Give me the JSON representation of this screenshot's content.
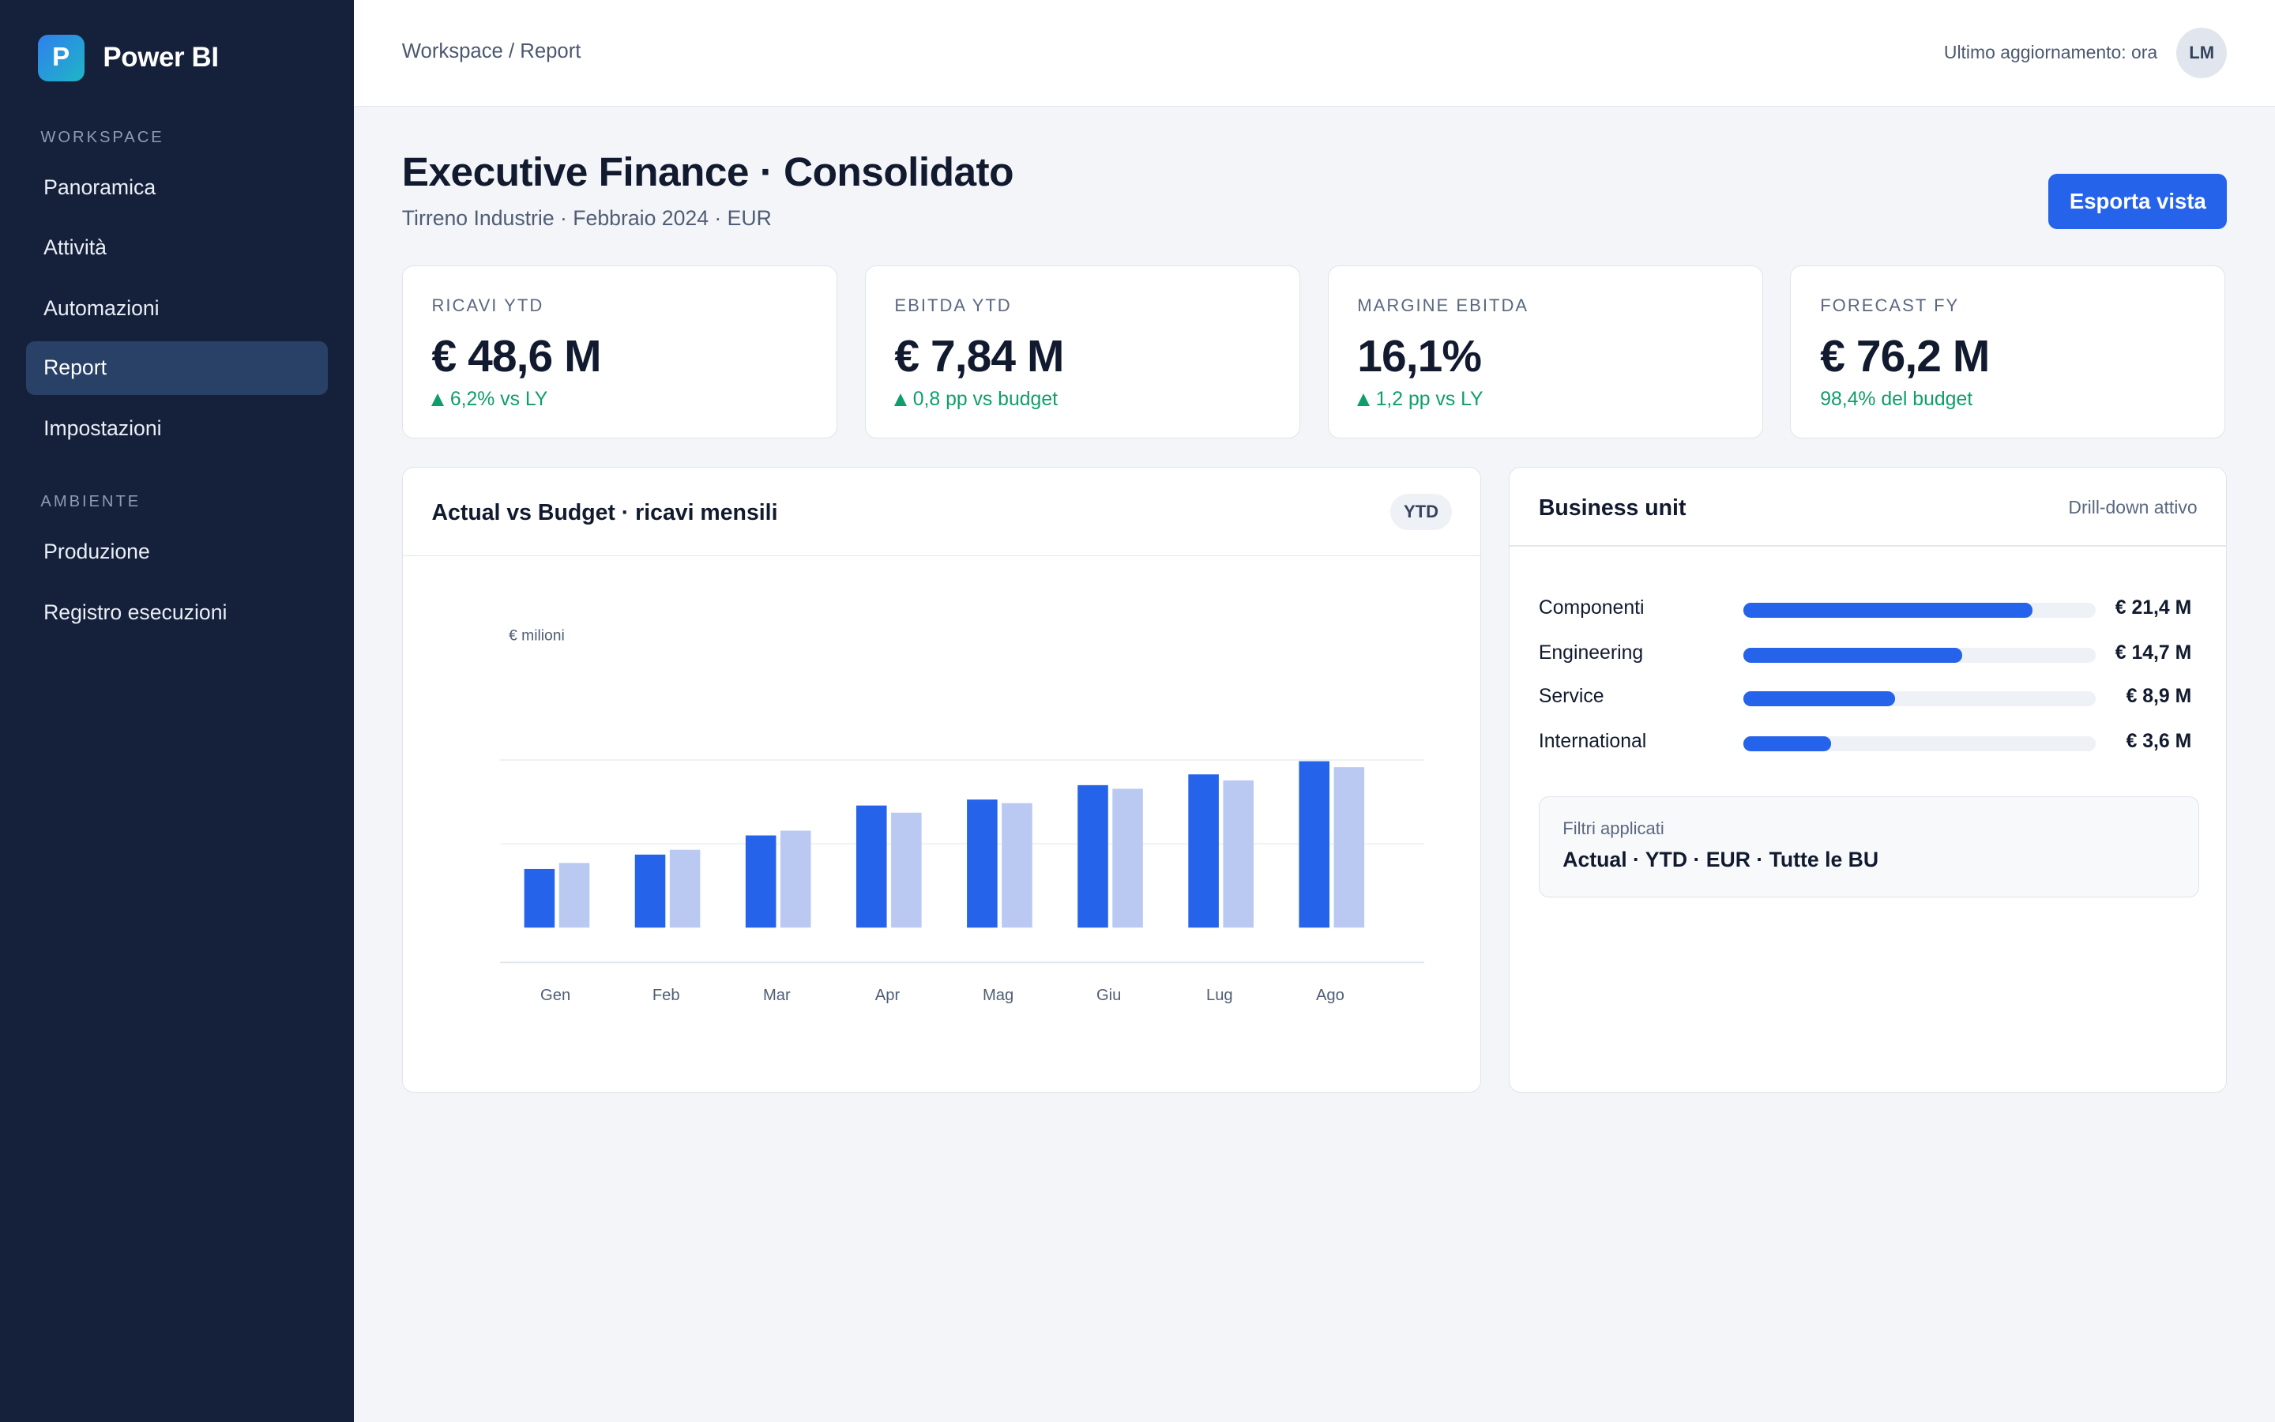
{
  "app": {
    "name": "Power BI",
    "logo_letter": "P"
  },
  "sidebar": {
    "sections": [
      {
        "title": "WORKSPACE",
        "items": [
          {
            "label": "Panoramica",
            "active": false
          },
          {
            "label": "Attività",
            "active": false
          },
          {
            "label": "Automazioni",
            "active": false
          },
          {
            "label": "Report",
            "active": true
          },
          {
            "label": "Impostazioni",
            "active": false
          }
        ]
      },
      {
        "title": "AMBIENTE",
        "items": [
          {
            "label": "Produzione",
            "active": false
          },
          {
            "label": "Registro esecuzioni",
            "active": false
          }
        ]
      }
    ]
  },
  "topbar": {
    "breadcrumb": "Workspace / Report",
    "last_update": "Ultimo aggiornamento: ora",
    "avatar_initials": "LM"
  },
  "header": {
    "title": "Executive Finance · Consolidato",
    "subtitle": "Tirreno Industrie · Febbraio 2024 · EUR",
    "export_label": "Esporta vista"
  },
  "kpis": [
    {
      "label": "RICAVI YTD",
      "value": "€ 48,6 M",
      "delta": "6,2% vs LY",
      "arrow": true
    },
    {
      "label": "EBITDA YTD",
      "value": "€ 7,84 M",
      "delta": "0,8 pp vs budget",
      "arrow": true
    },
    {
      "label": "MARGINE EBITDA",
      "value": "16,1%",
      "delta": "1,2 pp vs LY",
      "arrow": true
    },
    {
      "label": "FORECAST FY",
      "value": "€ 76,2 M",
      "delta": "98,4% del budget",
      "arrow": false
    }
  ],
  "chart_panel": {
    "title": "Actual vs Budget · ricavi mensili",
    "badge": "YTD"
  },
  "chart_data": {
    "type": "bar",
    "title": "Actual vs Budget · ricavi mensili",
    "ylabel": "€ milioni",
    "categories": [
      "Gen",
      "Feb",
      "Mar",
      "Apr",
      "Mag",
      "Giu",
      "Lug",
      "Ago"
    ],
    "series": [
      {
        "values": [
          4.9,
          6.1,
          7.7,
          10.2,
          10.7,
          11.9,
          12.8,
          13.9
        ],
        "color": "#2563eb"
      },
      {
        "values": [
          5.4,
          6.5,
          8.1,
          9.6,
          10.4,
          11.6,
          12.3,
          13.4
        ],
        "color": "#b9c9f1"
      }
    ],
    "ylim": [
      0,
      20
    ],
    "gridlines": [
      7,
      14
    ],
    "grid": true
  },
  "bu_panel": {
    "title": "Business unit",
    "drill": "Drill-down attivo",
    "rows": [
      {
        "label": "Componenti",
        "value": "€ 21,4 M",
        "share": 0.82
      },
      {
        "label": "Engineering",
        "value": "€ 14,7 M",
        "share": 0.62
      },
      {
        "label": "Service",
        "value": "€ 8,9 M",
        "share": 0.43
      },
      {
        "label": "International",
        "value": "€ 3,6 M",
        "share": 0.25
      }
    ],
    "filters_label": "Filtri applicati",
    "filters_value": "Actual · YTD · EUR · Tutte le BU"
  },
  "colors": {
    "sidebar_bg": "#15213a",
    "accent": "#2563eb",
    "positive": "#0f9d6b",
    "budget_bar": "#b9c9f1"
  }
}
